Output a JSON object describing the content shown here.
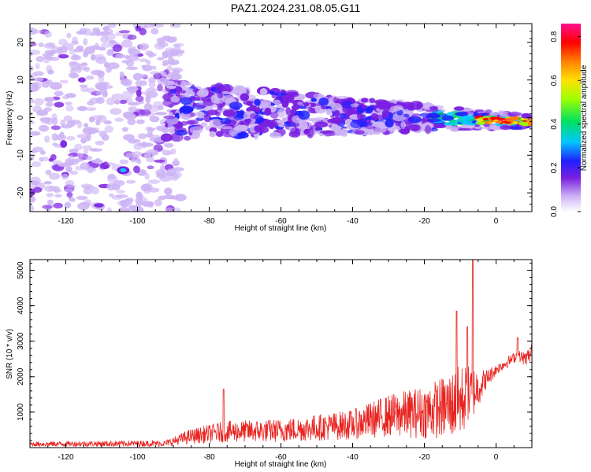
{
  "title": "PAZ1.2024.231.08.05.G11",
  "chart_data": [
    {
      "type": "heatmap",
      "title": "PAZ1.2024.231.08.05.G11",
      "xlabel": "Height of straight line (km)",
      "ylabel": "Frequency (Hz)",
      "xlim": [
        -130,
        10
      ],
      "ylim": [
        -25,
        25
      ],
      "xticks": [
        -120,
        -100,
        -80,
        -60,
        -40,
        -20,
        0
      ],
      "yticks": [
        -20,
        -10,
        0,
        10,
        20
      ],
      "colorbar": {
        "label": "Normalized spectral amplitude",
        "range": [
          0,
          0.86
        ],
        "ticks": [
          0.0,
          0.2,
          0.4,
          0.6,
          0.8
        ],
        "colors": [
          "#ffffff",
          "#cdb4f5",
          "#7a1fe0",
          "#2020ff",
          "#00c8ff",
          "#00e060",
          "#a0ff00",
          "#ffe000",
          "#ff8000",
          "#ff0000",
          "#ff1090"
        ]
      },
      "features": {
        "noise_region_km": [
          -130,
          -92
        ],
        "noise_freq_span_hz": [
          -25,
          25
        ],
        "band_center_start_hz": 2,
        "band_center_end_hz": -1,
        "band_width_start_hz": 14,
        "band_width_end_hz": 3,
        "peak_km": [
          -3,
          6
        ],
        "isolated_blob_km_hz": [
          -104,
          -14
        ]
      }
    },
    {
      "type": "line",
      "xlabel": "Height of straight line (km)",
      "ylabel": "SNR (10 * v/v)",
      "xlim": [
        -130,
        10
      ],
      "ylim": [
        0,
        5300
      ],
      "xticks": [
        -120,
        -100,
        -80,
        -60,
        -40,
        -20,
        0
      ],
      "yticks": [
        1000,
        2000,
        3000,
        4000,
        5000
      ],
      "color": "#e8231f",
      "envelope": {
        "km": [
          -130,
          -92,
          -86,
          -76,
          -60,
          -40,
          -30,
          -20,
          -14,
          -10,
          -6,
          -3,
          0,
          3,
          6,
          8,
          10
        ],
        "mean_snr": [
          100,
          120,
          300,
          450,
          480,
          650,
          900,
          1000,
          1150,
          1300,
          1600,
          1900,
          2200,
          2400,
          2600,
          2500,
          2650
        ],
        "noise": [
          70,
          90,
          200,
          300,
          330,
          420,
          600,
          750,
          900,
          1050,
          700,
          300,
          150,
          150,
          150,
          200,
          250
        ]
      },
      "spikes": [
        {
          "km": -76,
          "snr": 1650
        },
        {
          "km": -11,
          "snr": 3850
        },
        {
          "km": -6.5,
          "snr": 5300
        },
        {
          "km": -8,
          "snr": 3400
        },
        {
          "km": 6,
          "snr": 3100
        },
        {
          "km": 10,
          "snr": 2900
        }
      ]
    }
  ]
}
